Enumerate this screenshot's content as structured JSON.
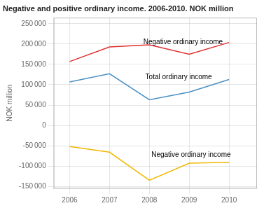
{
  "chart_data": {
    "type": "line",
    "title": "Negative and positive ordinary income. 2006-2010. NOK million",
    "ylabel": "NOK million",
    "x": [
      2006,
      2007,
      2008,
      2009,
      2010
    ],
    "series": [
      {
        "color": "#e03030",
        "values": [
          157000,
          193000,
          198000,
          175000,
          204000
        ]
      },
      {
        "color": "#4a90c4",
        "values": [
          107000,
          127000,
          63000,
          82000,
          113000
        ]
      },
      {
        "color": "#f0b800",
        "values": [
          -52000,
          -66000,
          -135000,
          -93000,
          -91000
        ]
      }
    ],
    "xlim": [
      2005.6,
      2010.7
    ],
    "xticks": [
      2006,
      2007,
      2008,
      2009,
      2010
    ],
    "ylim": [
      -155000,
      265000
    ],
    "yticks": [
      {
        "value": -150000,
        "label": "-150 000"
      },
      {
        "value": -100000,
        "label": "-100 000"
      },
      {
        "value": -50000,
        "label": "-50 000"
      },
      0,
      {
        "value": 50000,
        "label": "50 000"
      },
      {
        "value": 100000,
        "label": "100 000"
      },
      {
        "value": 150000,
        "label": "150 000"
      },
      {
        "value": 200000,
        "label": "200 000"
      },
      {
        "value": 250000,
        "label": "250 000"
      }
    ],
    "grid": true,
    "annotations": [
      {
        "text": "Negative ordinary income",
        "x": 2007.85,
        "y": 200000
      },
      {
        "text": "Total ordinary income",
        "x": 2007.9,
        "y": 113000
      },
      {
        "text": "Negative ordinary income",
        "x": 2008.05,
        "y": -78000
      }
    ]
  }
}
